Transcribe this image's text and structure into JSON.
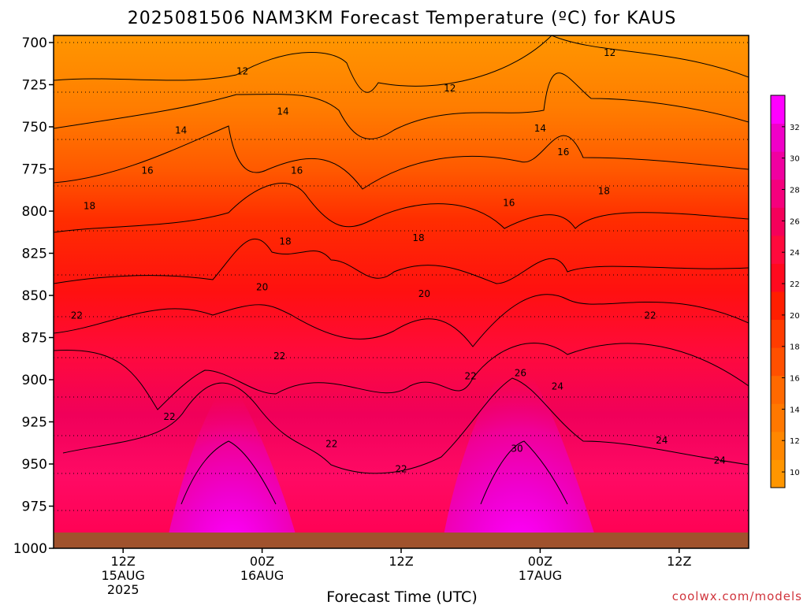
{
  "chart_data": {
    "type": "heatmap",
    "title": "2025081506 NAM3KM Forecast Temperature (ºC) for KAUS",
    "xlabel": "Forecast Time (UTC)",
    "ylabel": "",
    "credit": "coolwx.com/models",
    "y_ticks": [
      "700",
      "725",
      "750",
      "775",
      "800",
      "825",
      "850",
      "875",
      "900",
      "925",
      "950",
      "975",
      "1000"
    ],
    "y_range": [
      700,
      1000
    ],
    "x_ticks": [
      {
        "line1": "12Z",
        "line2": "15AUG",
        "line3": "2025",
        "hour": 6
      },
      {
        "line1": "00Z",
        "line2": "16AUG",
        "line3": "",
        "hour": 18
      },
      {
        "line1": "12Z",
        "line2": "",
        "line3": "",
        "hour": 30
      },
      {
        "line1": "00Z",
        "line2": "17AUG",
        "line3": "",
        "hour": 42
      },
      {
        "line1": "12Z",
        "line2": "",
        "line3": "",
        "hour": 54
      }
    ],
    "x_range": [
      0,
      60
    ],
    "colorbar_ticks": [
      "10",
      "12",
      "14",
      "16",
      "18",
      "20",
      "22",
      "24",
      "26",
      "28",
      "30",
      "32"
    ],
    "colorbar_range": [
      9,
      34
    ],
    "contour_labels": [
      {
        "text": "12",
        "hour": 16.3,
        "p": 717
      },
      {
        "text": "12",
        "hour": 34.2,
        "p": 727
      },
      {
        "text": "12",
        "hour": 48.0,
        "p": 706
      },
      {
        "text": "14",
        "hour": 11.0,
        "p": 752
      },
      {
        "text": "14",
        "hour": 19.8,
        "p": 741
      },
      {
        "text": "14",
        "hour": 42.0,
        "p": 751
      },
      {
        "text": "16",
        "hour": 8.1,
        "p": 776
      },
      {
        "text": "16",
        "hour": 21.0,
        "p": 776
      },
      {
        "text": "16",
        "hour": 44.0,
        "p": 765
      },
      {
        "text": "16",
        "hour": 39.3,
        "p": 795
      },
      {
        "text": "18",
        "hour": 3.1,
        "p": 797
      },
      {
        "text": "18",
        "hour": 20.0,
        "p": 818
      },
      {
        "text": "18",
        "hour": 31.5,
        "p": 816
      },
      {
        "text": "18",
        "hour": 47.5,
        "p": 788
      },
      {
        "text": "20",
        "hour": 18.0,
        "p": 845
      },
      {
        "text": "20",
        "hour": 32.0,
        "p": 849
      },
      {
        "text": "22",
        "hour": 2.0,
        "p": 862
      },
      {
        "text": "22",
        "hour": 19.5,
        "p": 886
      },
      {
        "text": "22",
        "hour": 10.0,
        "p": 922
      },
      {
        "text": "22",
        "hour": 24.0,
        "p": 938
      },
      {
        "text": "22",
        "hour": 30.0,
        "p": 953
      },
      {
        "text": "22",
        "hour": 36.0,
        "p": 898
      },
      {
        "text": "22",
        "hour": 51.5,
        "p": 862
      },
      {
        "text": "24",
        "hour": 43.5,
        "p": 904
      },
      {
        "text": "24",
        "hour": 52.5,
        "p": 936
      },
      {
        "text": "24",
        "hour": 57.5,
        "p": 948
      },
      {
        "text": "26",
        "hour": 40.3,
        "p": 896
      },
      {
        "text": "30",
        "hour": 40.0,
        "p": 941
      }
    ],
    "grid": "dotted"
  }
}
